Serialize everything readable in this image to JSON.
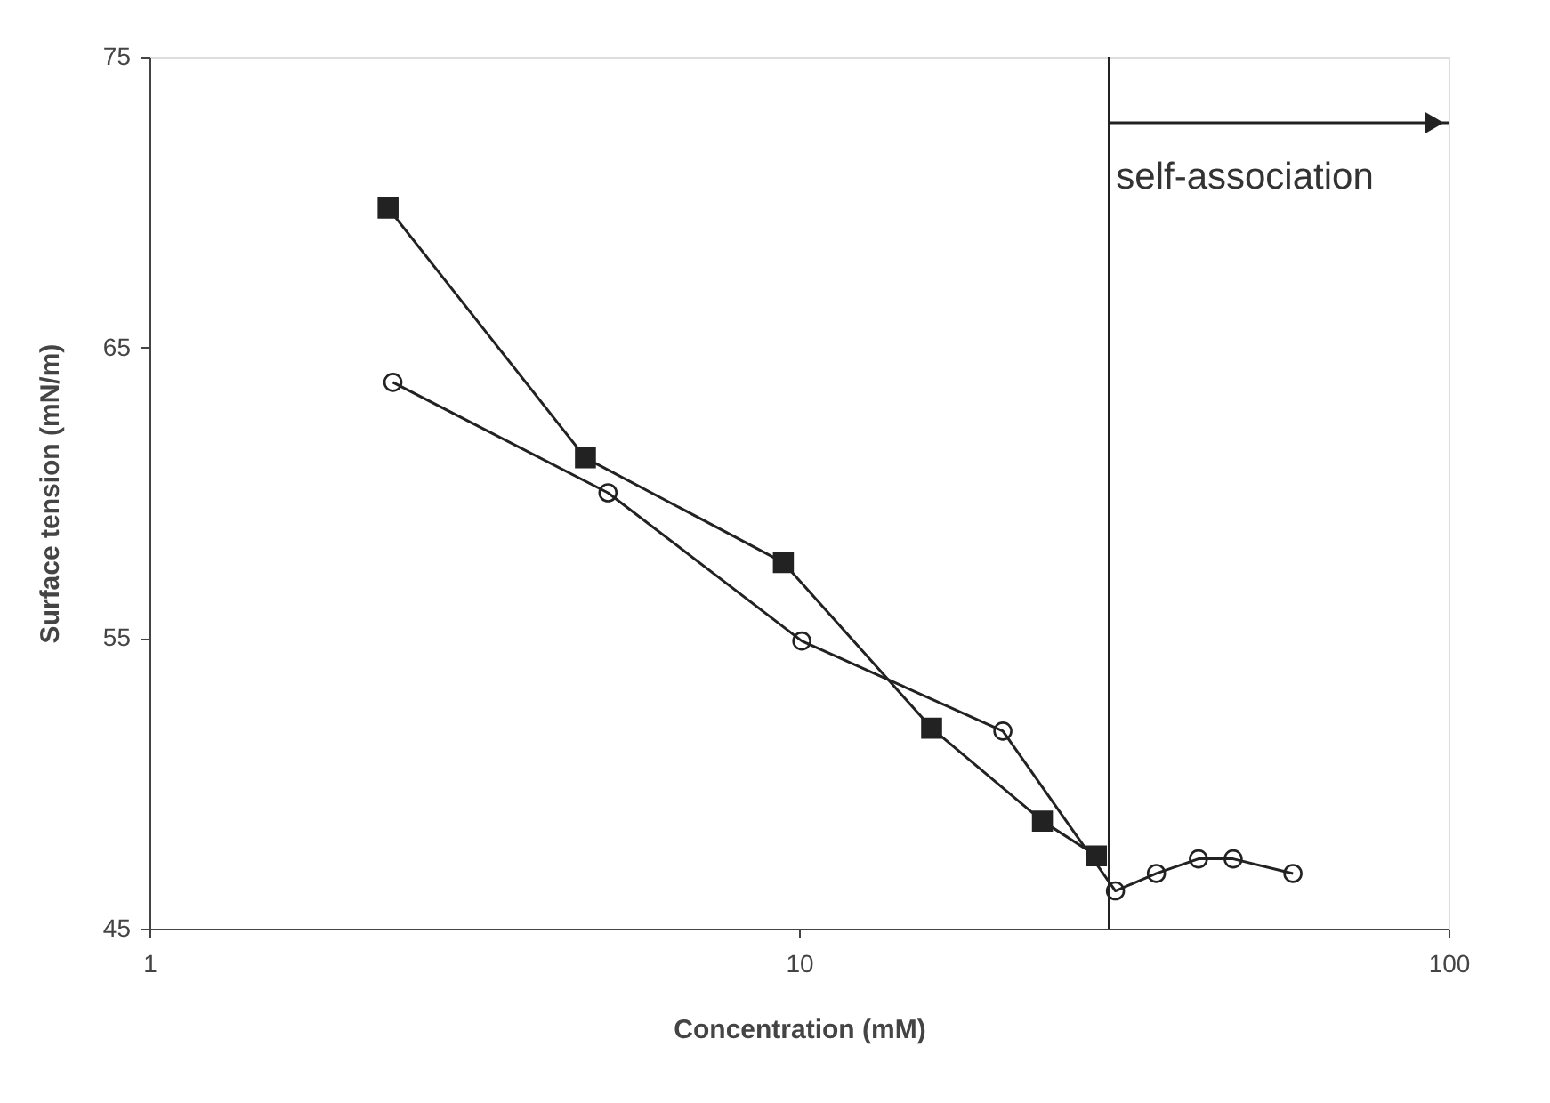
{
  "chart_data": {
    "type": "line",
    "xlabel": "Concentration (mM)",
    "ylabel": "Surface tension (mN/m)",
    "log": "x",
    "xlim": [
      1,
      100
    ],
    "xticks": [
      1,
      10,
      100
    ],
    "ylim": [
      45,
      75
    ],
    "yticks": [
      45,
      55,
      65,
      75
    ],
    "grid": false,
    "series": [
      {
        "color": "#222222",
        "marker": "square",
        "x": [
          2.33,
          4.69,
          9.46,
          16.0,
          23.7,
          28.7
        ],
        "values": [
          69.8,
          61.2,
          57.6,
          51.9,
          48.7,
          47.5
        ]
      },
      {
        "color": "#222222",
        "marker": "circle",
        "x": [
          2.37,
          5.08,
          10.1,
          20.6,
          30.7,
          35.5,
          41.2,
          46.6,
          57.6
        ],
        "values": [
          63.8,
          60.0,
          54.9,
          51.8,
          46.3,
          46.9,
          47.4,
          47.4,
          46.9
        ]
      }
    ],
    "ref_lines": [
      {
        "axis": "x",
        "value": 30,
        "label": "self-association",
        "color": "#222222"
      }
    ]
  }
}
